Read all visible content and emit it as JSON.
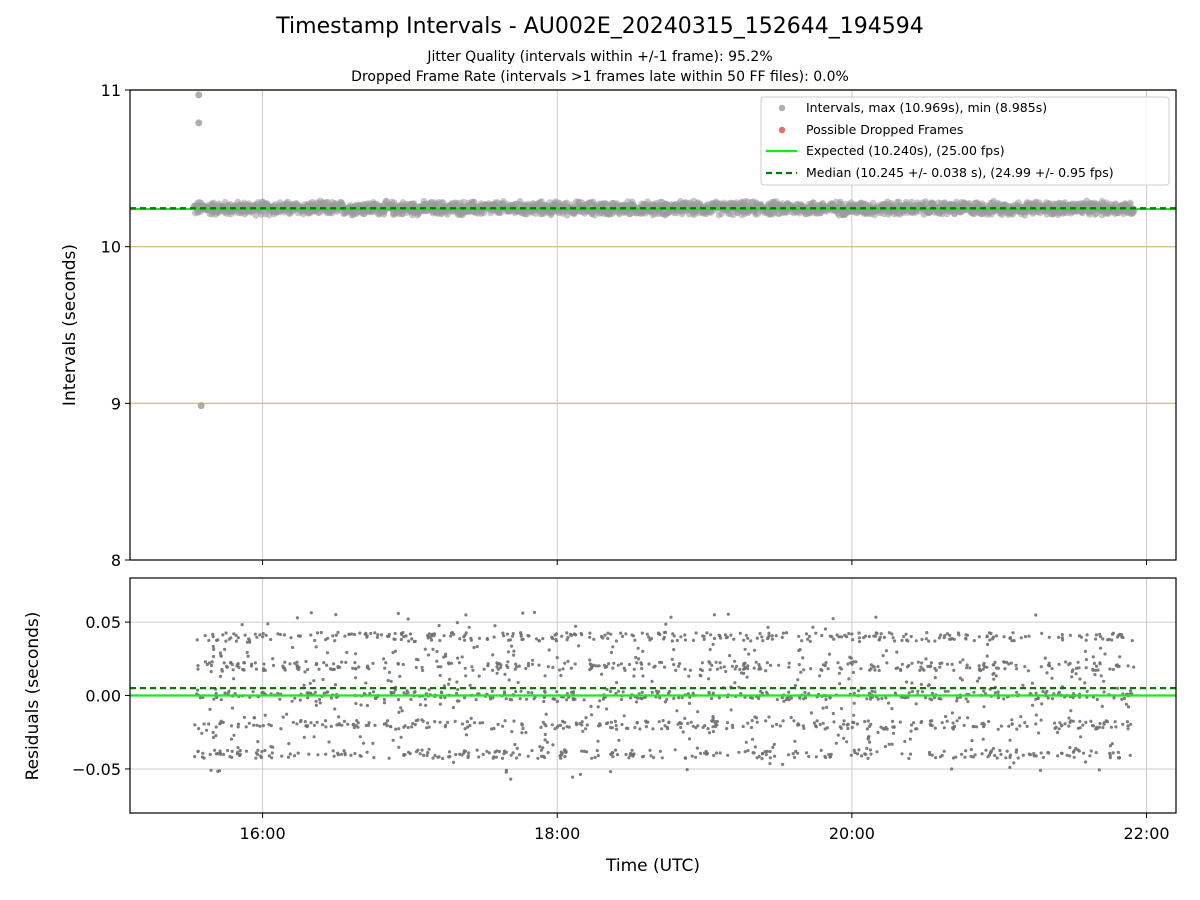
{
  "figure": {
    "title": "Timestamp Intervals - AU002E_20240315_152644_194594",
    "subtitle_1": "Jitter Quality (intervals within +/-1 frame): 95.2%",
    "subtitle_2": "Dropped Frame Rate (intervals >1 frames late within 50 FF files): 0.0%"
  },
  "colors": {
    "intervals": "#9a9a9a",
    "dropped": "#e8524a",
    "expected": "#11ee11",
    "median": "#007a00",
    "ref_lines": "#d4c48a",
    "grid": "#cccccc",
    "residual_points": "#707070"
  },
  "chart_data": [
    {
      "type": "scatter",
      "ylabel": "Intervals (seconds)",
      "ylim": [
        8,
        11
      ],
      "yticks": [
        "8",
        "9",
        "10",
        "11"
      ],
      "xlim_hours": [
        15.1,
        22.2
      ],
      "x_ticks": [
        "16:00",
        "18:00",
        "20:00",
        "22:00"
      ],
      "grid": true,
      "legend_position": "top-right",
      "legend": {
        "intervals": "Intervals, max (10.969s), min (8.985s)",
        "dropped": "Possible Dropped Frames",
        "expected": "Expected (10.240s), (25.00 fps)",
        "median": "Median (10.245 +/- 0.038 s), (24.99 +/- 0.95 fps)"
      },
      "expected_interval": 10.24,
      "median_interval": 10.245,
      "max_interval": 10.969,
      "min_interval": 8.985,
      "reference_lines": [
        9,
        10,
        11
      ],
      "x_start": "15:32",
      "x_end": "21:55",
      "band_center": 10.245,
      "band_halfwidth": 0.05,
      "outliers": [
        {
          "x": "15:34",
          "y": 10.969
        },
        {
          "x": "15:34",
          "y": 10.79
        },
        {
          "x": "15:35",
          "y": 8.985
        }
      ],
      "dropped_frames": []
    },
    {
      "type": "scatter",
      "xlabel": "Time (UTC)",
      "ylabel": "Residuals (seconds)",
      "ylim": [
        -0.08,
        0.08
      ],
      "yticks": [
        "−0.05",
        "0.00",
        "0.05"
      ],
      "xlim_hours": [
        15.1,
        22.2
      ],
      "x_ticks": [
        "16:00",
        "18:00",
        "20:00",
        "22:00"
      ],
      "grid": true,
      "expected_residual": 0.0,
      "median_residual": 0.005,
      "residual_range": [
        -0.05,
        0.06
      ]
    }
  ]
}
